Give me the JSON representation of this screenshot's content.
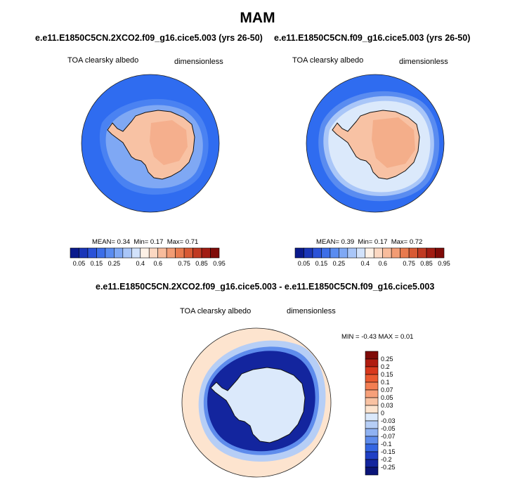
{
  "page": {
    "title": "MAM"
  },
  "panels": [
    {
      "title": "e.e11.E1850C5CN.2XCO2.f09_g16.cice5.003 (yrs 26-50)",
      "left_label": "TOA clearsky albedo",
      "right_label": "dimensionless",
      "stats": {
        "mean_label": "MEAN=",
        "mean": "0.34",
        "min_label": "Min=",
        "min": "0.17",
        "max_label": "Max=",
        "max": "0.71"
      }
    },
    {
      "title": "e.e11.E1850C5CN.f09_g16.cice5.003 (yrs 26-50)",
      "left_label": "TOA clearsky albedo",
      "right_label": "dimensionless",
      "stats": {
        "mean_label": "MEAN=",
        "mean": "0.39",
        "min_label": "Min=",
        "min": "0.17",
        "max_label": "Max=",
        "max": "0.72"
      }
    }
  ],
  "diff_panel": {
    "title": "e.e11.E1850C5CN.2XCO2.f09_g16.cice5.003 - e.e11.E1850C5CN.f09_g16.cice5.003",
    "left_label": "TOA clearsky albedo",
    "right_label": "dimensionless",
    "minmax": "MIN =  -0.43 MAX =  0.01"
  },
  "colors": {
    "ocean_blue": "#2f6cf0",
    "deep_blue": "#0a1a8c",
    "mid_blue": "#2a46d0",
    "light_blue": "#8fb2f2",
    "pale_blue": "#dbe9fb",
    "land_salmon": "#f8c2a4",
    "land_orange": "#f2a07a",
    "cream": "#fde4cf",
    "coast": "#111111"
  },
  "chart_data": [
    {
      "type": "heatmap",
      "title": "e.e11.E1850C5CN.2XCO2.f09_g16.cice5.003 (yrs 26-50)",
      "variable": "TOA clearsky albedo",
      "units": "dimensionless",
      "projection": "south polar stereographic",
      "mean": 0.34,
      "min": 0.17,
      "max": 0.71,
      "colorbar": {
        "orientation": "horizontal",
        "levels": [
          0.05,
          0.1,
          0.15,
          0.2,
          0.25,
          0.3,
          0.35,
          0.4,
          0.5,
          0.6,
          0.65,
          0.7,
          0.75,
          0.8,
          0.85,
          0.9,
          0.95
        ],
        "tick_labels": [
          "0.05",
          "0.15",
          "0.25",
          "0.4",
          "0.6",
          "0.75",
          "0.85",
          "0.95"
        ],
        "colors": [
          "#0a1a8c",
          "#1a36b8",
          "#2a52d8",
          "#3c6ee8",
          "#5a8cf0",
          "#7fa8f4",
          "#a9c6f8",
          "#d2e2fb",
          "#fef1e6",
          "#fcd8c2",
          "#f8bc9c",
          "#f29c74",
          "#e87a4e",
          "#d85a34",
          "#c03a22",
          "#a11c12",
          "#7f0b08"
        ]
      }
    },
    {
      "type": "heatmap",
      "title": "e.e11.E1850C5CN.f09_g16.cice5.003 (yrs 26-50)",
      "variable": "TOA clearsky albedo",
      "units": "dimensionless",
      "projection": "south polar stereographic",
      "mean": 0.39,
      "min": 0.17,
      "max": 0.72,
      "colorbar": {
        "orientation": "horizontal",
        "levels": [
          0.05,
          0.1,
          0.15,
          0.2,
          0.25,
          0.3,
          0.35,
          0.4,
          0.5,
          0.6,
          0.65,
          0.7,
          0.75,
          0.8,
          0.85,
          0.9,
          0.95
        ],
        "tick_labels": [
          "0.05",
          "0.15",
          "0.25",
          "0.4",
          "0.6",
          "0.75",
          "0.85",
          "0.95"
        ],
        "colors": [
          "#0a1a8c",
          "#1a36b8",
          "#2a52d8",
          "#3c6ee8",
          "#5a8cf0",
          "#7fa8f4",
          "#a9c6f8",
          "#d2e2fb",
          "#fef1e6",
          "#fcd8c2",
          "#f8bc9c",
          "#f29c74",
          "#e87a4e",
          "#d85a34",
          "#c03a22",
          "#a11c12",
          "#7f0b08"
        ]
      }
    },
    {
      "type": "heatmap",
      "title": "e.e11.E1850C5CN.2XCO2.f09_g16.cice5.003 - e.e11.E1850C5CN.f09_g16.cice5.003",
      "variable": "TOA clearsky albedo",
      "units": "dimensionless",
      "projection": "south polar stereographic",
      "min": -0.43,
      "max": 0.01,
      "colorbar": {
        "orientation": "vertical",
        "tick_labels": [
          "0.25",
          "0.2",
          "0.15",
          "0.1",
          "0.07",
          "0.05",
          "0.03",
          "0",
          "-0.03",
          "-0.05",
          "-0.07",
          "-0.1",
          "-0.15",
          "-0.2",
          "-0.25"
        ],
        "colors": [
          "#7f0b08",
          "#b01c10",
          "#d8381c",
          "#ea5a30",
          "#f37e52",
          "#f7a07a",
          "#f9c2a2",
          "#fde4cf",
          "#dbe9fb",
          "#b6cef6",
          "#8fb2f2",
          "#5e8cec",
          "#3466e2",
          "#1f3fc4",
          "#13259e",
          "#0a1478"
        ]
      }
    }
  ]
}
